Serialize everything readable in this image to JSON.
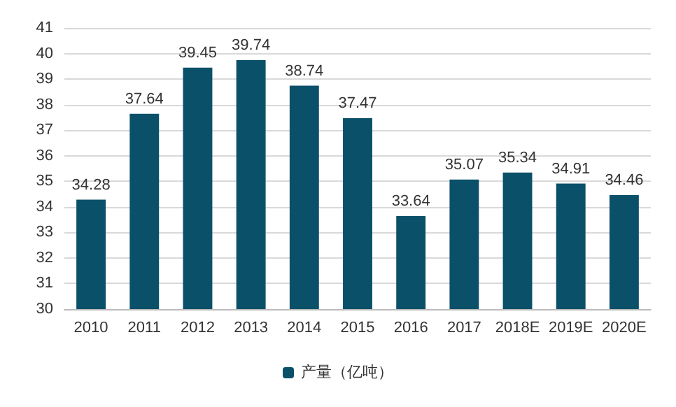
{
  "chart_data": {
    "type": "bar",
    "categories": [
      "2010",
      "2011",
      "2012",
      "2013",
      "2014",
      "2015",
      "2016",
      "2017",
      "2018E",
      "2019E",
      "2020E"
    ],
    "series": [
      {
        "name": "产量（亿吨）",
        "color": "#0b5069",
        "values": [
          34.28,
          37.64,
          39.45,
          39.74,
          38.74,
          37.47,
          33.64,
          35.07,
          35.34,
          34.91,
          34.46
        ]
      }
    ],
    "ylim": [
      30,
      41
    ],
    "yticks": [
      30,
      31,
      32,
      33,
      34,
      35,
      36,
      37,
      38,
      39,
      40,
      41
    ],
    "grid": "y",
    "legend": "bottom",
    "data_labels": true
  }
}
